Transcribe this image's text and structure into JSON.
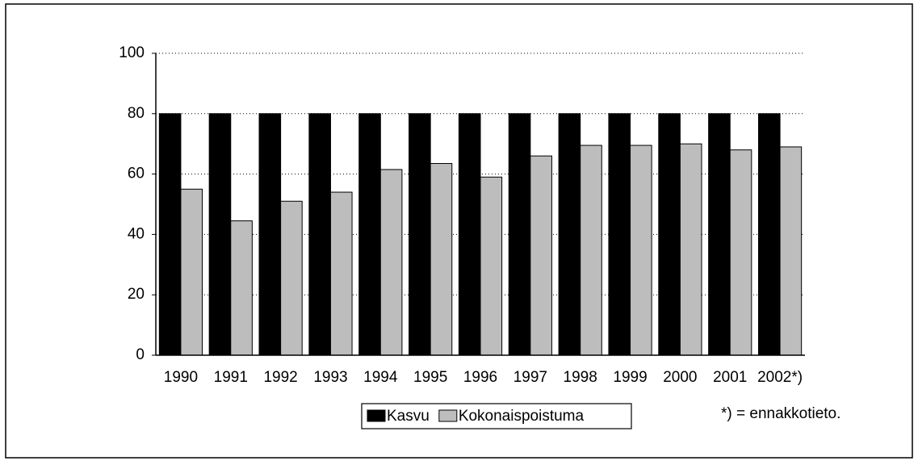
{
  "chart_data": {
    "type": "bar",
    "categories": [
      "1990",
      "1991",
      "1992",
      "1993",
      "1994",
      "1995",
      "1996",
      "1997",
      "1998",
      "1999",
      "2000",
      "2001",
      "2002*)"
    ],
    "series": [
      {
        "name": "Kasvu",
        "color": "#000000",
        "values": [
          80,
          80,
          80,
          80,
          80,
          80,
          80,
          80,
          80,
          80,
          80,
          80,
          80
        ]
      },
      {
        "name": "Kokonaispoistuma",
        "color": "#bdbdbd",
        "values": [
          55,
          44.5,
          51,
          54,
          61.5,
          63.5,
          59,
          66,
          69.5,
          69.5,
          70,
          68,
          69
        ]
      }
    ],
    "ylim": [
      0,
      100
    ],
    "yticks": [
      0,
      20,
      40,
      60,
      80,
      100
    ],
    "grid": true,
    "annotation": "*) = ennakkotieto."
  }
}
